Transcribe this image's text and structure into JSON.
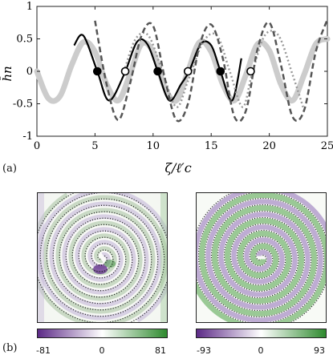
{
  "panel_a_label": "(a)",
  "panel_b_label": "(b)",
  "chart_data": [
    {
      "type": "line",
      "xlabel": "ζ/ℓ′c",
      "ylabel": "h̄n",
      "xlim": [
        0,
        25
      ],
      "ylim": [
        -1,
        1
      ],
      "xticks": [
        "0",
        "5",
        "10",
        "15",
        "20",
        "25"
      ],
      "yticks": [
        "-1",
        "-0.5",
        "0",
        "0.5",
        "1"
      ],
      "grid": false,
      "series": [
        {
          "style": "thick-light-gray",
          "color": "#cccccc",
          "x": [
            0,
            1,
            2,
            3,
            4,
            5,
            6,
            7,
            8,
            9,
            10,
            11,
            12,
            13,
            14,
            15,
            16,
            17,
            18,
            19,
            20,
            21,
            22,
            23,
            24,
            25
          ],
          "y": [
            0,
            -0.42,
            -0.38,
            0.1,
            0.45,
            0.3,
            -0.2,
            -0.45,
            -0.05,
            0.42,
            0.3,
            -0.25,
            -0.45,
            0.0,
            0.45,
            0.3,
            -0.2,
            -0.45,
            -0.05,
            0.42,
            0.32,
            -0.2,
            -0.45,
            -0.05,
            0.42,
            0.5
          ]
        },
        {
          "style": "solid-black",
          "color": "#000000",
          "x": [
            3.2,
            4.0,
            5.2,
            6.2,
            7.5,
            8.6,
            9.5,
            10.4,
            11.4,
            12.4,
            13.1,
            14.1,
            15.0,
            15.8,
            16.8,
            17.6
          ],
          "y": [
            0.4,
            0.55,
            0.0,
            -0.45,
            -0.05,
            0.45,
            0.42,
            0.0,
            -0.45,
            -0.2,
            0.0,
            0.42,
            0.4,
            0.0,
            -0.45,
            0.2
          ]
        },
        {
          "style": "dotted-gray",
          "color": "#999999",
          "x": [
            7.5,
            8.5,
            9.6,
            10.8,
            12.0,
            13.0,
            14.3,
            15.5,
            16.6,
            17.7,
            18.5,
            19.6,
            20.8,
            22.0,
            23.0
          ],
          "y": [
            0.0,
            0.5,
            0.55,
            0.0,
            -0.55,
            -0.15,
            0.45,
            0.55,
            0.0,
            -0.55,
            -0.05,
            0.55,
            0.55,
            -0.05,
            -0.6
          ]
        },
        {
          "style": "dashed-dark-gray",
          "color": "#555555",
          "x": [
            5.0,
            6.0,
            7.0,
            8.0,
            9.0,
            10.0,
            11.0,
            12.0,
            13.0,
            14.0,
            15.0,
            16.0,
            17.0,
            18.0,
            19.0,
            20.0,
            21.0,
            22.0,
            23.0,
            24.0,
            25.0
          ],
          "y": [
            0.78,
            -0.2,
            -0.75,
            -0.2,
            0.55,
            0.7,
            -0.1,
            -0.75,
            -0.5,
            0.4,
            0.72,
            0.2,
            -0.7,
            -0.6,
            0.35,
            0.75,
            0.1,
            -0.7,
            -0.6,
            0.3,
            0.8
          ]
        }
      ],
      "markers": [
        {
          "x": 5.2,
          "y": 0,
          "fill": "black"
        },
        {
          "x": 7.6,
          "y": 0,
          "fill": "white"
        },
        {
          "x": 10.4,
          "y": 0,
          "fill": "black"
        },
        {
          "x": 13.0,
          "y": 0,
          "fill": "white"
        },
        {
          "x": 15.8,
          "y": 0,
          "fill": "black"
        },
        {
          "x": 18.4,
          "y": 0,
          "fill": "white"
        }
      ]
    },
    {
      "type": "heatmap",
      "colormap": [
        "#5c2a87",
        "#ffffff",
        "#2e8a2e"
      ],
      "colorbar": {
        "min": -81,
        "max": 81,
        "ticks": [
          "-81",
          "0",
          "81"
        ]
      }
    },
    {
      "type": "heatmap",
      "colormap": [
        "#5c2a87",
        "#ffffff",
        "#2e8a2e"
      ],
      "colorbar": {
        "min": -93,
        "max": 93,
        "ticks": [
          "-93",
          "0",
          "93"
        ]
      }
    }
  ]
}
